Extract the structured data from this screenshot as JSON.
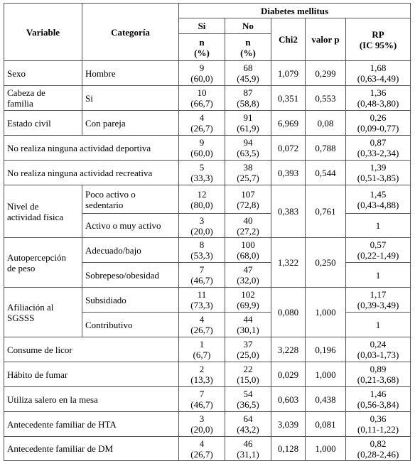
{
  "header": {
    "variable": "Variable",
    "categoria": "Categoría",
    "group": "Diabetes mellitus",
    "si": "Si",
    "no": "No",
    "n": "n",
    "pct": "(%)",
    "chi2": "Chi2",
    "valorp": "valor p",
    "rp": "RP",
    "ic": "(IC 95%)"
  },
  "rows": {
    "sexo": {
      "var": "Sexo",
      "cat": "Hombre",
      "si_n": "9",
      "si_p": "(60,0)",
      "no_n": "68",
      "no_p": "(45,9)",
      "chi2": "1,079",
      "p": "0,299",
      "rp": "1,68",
      "ic": "(0,63-4,49)"
    },
    "cabeza": {
      "var1": "Cabeza de",
      "var2": "familia",
      "cat": "Si",
      "si_n": "10",
      "si_p": "(66,7)",
      "no_n": "87",
      "no_p": "(58,8)",
      "chi2": "0,351",
      "p": "0,553",
      "rp": "1,36",
      "ic": "(0,48-3,80)"
    },
    "civil": {
      "var": "Estado civil",
      "cat": "Con pareja",
      "si_n": "4",
      "si_p": "(26,7)",
      "no_n": "91",
      "no_p": "(61,9)",
      "chi2": "6,969",
      "p": "0,08",
      "rp": "0,26",
      "ic": "(0,09-0,77)"
    },
    "deportiva": {
      "var": "No realiza ninguna actividad deportiva",
      "si_n": "9",
      "si_p": "(60,0)",
      "no_n": "94",
      "no_p": "(63,5)",
      "chi2": "0,072",
      "p": "0,788",
      "rp": "0,87",
      "ic": "(0,33-2,34)"
    },
    "recreativa": {
      "var": "No realiza ninguna actividad recreativa",
      "si_n": "5",
      "si_p": "(33,3)",
      "no_n": "38",
      "no_p": "(25,7)",
      "chi2": "0,393",
      "p": "0,544",
      "rp": "1,39",
      "ic": "(0,51-3,85)"
    },
    "fisica": {
      "var1": "Nivel de",
      "var2": "actividad física",
      "chi2": "0,383",
      "p": "0,761",
      "a": {
        "cat1": "Poco activo o",
        "cat2": "sedentario",
        "si_n": "12",
        "si_p": "(80,0)",
        "no_n": "107",
        "no_p": "(72,8)",
        "rp": "1,45",
        "ic": "(0,43-4,88)"
      },
      "b": {
        "cat": "Activo o muy activo",
        "si_n": "3",
        "si_p": "(20,0)",
        "no_n": "40",
        "no_p": "(27,2)",
        "rp": "1"
      }
    },
    "peso": {
      "var1": "Autopercepción",
      "var2": "de peso",
      "chi2": "1,322",
      "p": "0,250",
      "a": {
        "cat": "Adecuado/bajo",
        "si_n": "8",
        "si_p": "(53,3)",
        "no_n": "100",
        "no_p": "(68,0)",
        "rp": "0,57",
        "ic": "(0,22-1,49)"
      },
      "b": {
        "cat": "Sobrepeso/obesidad",
        "si_n": "7",
        "si_p": "(46,7)",
        "no_n": "47",
        "no_p": "(32,0)",
        "rp": "1"
      }
    },
    "sgsss": {
      "var1": "Afiliación al",
      "var2": "SGSSS",
      "chi2": "0,080",
      "p": "1,000",
      "a": {
        "cat": "Subsidiado",
        "si_n": "11",
        "si_p": "(73,3)",
        "no_n": "102",
        "no_p": "(69,9)",
        "rp": "1,17",
        "ic": "(0,39-3,49)"
      },
      "b": {
        "cat": "Contributivo",
        "si_n": "4",
        "si_p": "(26,7)",
        "no_n": "44",
        "no_p": "(30,1)",
        "rp": "1"
      }
    },
    "licor": {
      "var": "Consume de licor",
      "si_n": "1",
      "si_p": "(6,7)",
      "no_n": "37",
      "no_p": "(25,0)",
      "chi2": "3,228",
      "p": "0,196",
      "rp": "0,24",
      "ic": "(0,03-1,73)"
    },
    "fumar": {
      "var": "Hábito de fumar",
      "si_n": "2",
      "si_p": "(13,3)",
      "no_n": "22",
      "no_p": "(15,0)",
      "chi2": "0,029",
      "p": "1,000",
      "rp": "0,89",
      "ic": "(0,21-3,68)"
    },
    "salero": {
      "var": "Utiliza salero en la mesa",
      "si_n": "7",
      "si_p": "(46,7)",
      "no_n": "54",
      "no_p": "(36,5)",
      "chi2": "0,603",
      "p": "0,438",
      "rp": "1,46",
      "ic": "(0,56-3,84)"
    },
    "hta": {
      "var": "Antecedente familiar de HTA",
      "si_n": "3",
      "si_p": "(20,0)",
      "no_n": "64",
      "no_p": "(43,2)",
      "chi2": "3,039",
      "p": "0,081",
      "rp": "0,36",
      "ic": "(0,11-1,22)"
    },
    "dm": {
      "var": "Antecedente familiar de DM",
      "si_n": "4",
      "si_p": "(26,7)",
      "no_n": "46",
      "no_p": "(31,1)",
      "chi2": "0,128",
      "p": "1,000",
      "rp": "0,82",
      "ic": "(0,28-2,46)"
    }
  }
}
